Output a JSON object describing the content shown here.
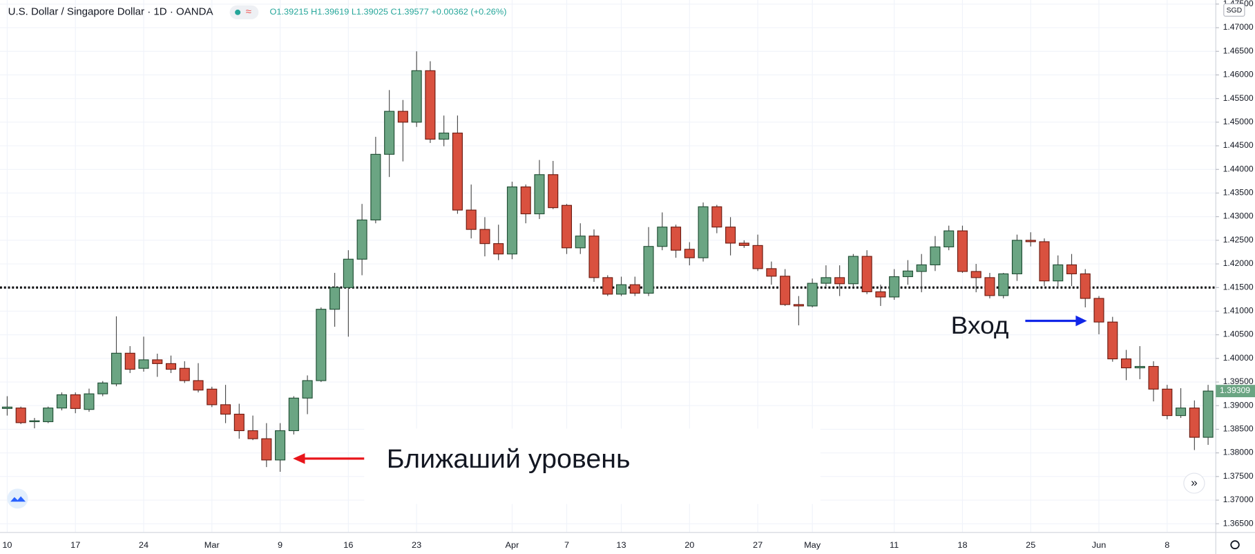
{
  "chart_data": {
    "type": "candlestick",
    "title": "U.S. Dollar / Singapore Dollar · 1D · OANDA",
    "ohlc_legend": "O1.39215 H1.39619 L1.39025 C1.39577 +0.00362 (+0.26%)",
    "currency": "SGD",
    "last_price": 1.39309,
    "level": 1.415,
    "annotations": [
      "Ближаший уровень",
      "Вход"
    ],
    "up_color": "#6ba583",
    "down_color": "#d9513f",
    "grid": true,
    "categories": [
      "10",
      null,
      null,
      null,
      null,
      "17",
      null,
      null,
      null,
      null,
      "24",
      null,
      null,
      null,
      null,
      "Mar",
      null,
      null,
      null,
      null,
      "9",
      null,
      null,
      null,
      null,
      "16",
      null,
      null,
      null,
      null,
      "23",
      null,
      null,
      null,
      null,
      null,
      null,
      "Apr",
      null,
      null,
      null,
      "7",
      null,
      null,
      null,
      "13",
      null,
      null,
      null,
      null,
      "20",
      null,
      null,
      null,
      null,
      "27",
      null,
      null,
      null,
      "May",
      null,
      null,
      null,
      null,
      null,
      "11",
      null,
      null,
      null,
      null,
      "18",
      null,
      null,
      null,
      null,
      "25",
      null,
      null,
      null,
      null,
      "Jun",
      null,
      null,
      null,
      null,
      "8",
      null,
      null,
      null
    ],
    "open": [
      1.3894,
      1.3895,
      1.3866,
      1.3866,
      1.3895,
      1.3923,
      1.3892,
      1.3925,
      1.3946,
      1.4011,
      1.3979,
      1.3997,
      1.3989,
      1.3979,
      1.3953,
      1.3935,
      1.3902,
      1.3882,
      1.3847,
      1.383,
      1.3785,
      1.3847,
      1.3916,
      1.3953,
      1.4104,
      1.415,
      1.421,
      1.4293,
      1.4432,
      1.4523,
      1.45,
      1.4609,
      1.4464,
      1.4477,
      1.4314,
      1.4273,
      1.4243,
      1.4221,
      1.4363,
      1.4306,
      1.4389,
      1.4324,
      1.4234,
      1.4259,
      1.4171,
      1.4136,
      1.4156,
      1.4138,
      1.4237,
      1.4278,
      1.4231,
      1.4213,
      1.4321,
      1.4278,
      1.4244,
      1.4239,
      1.419,
      1.4174,
      1.4114,
      1.4111,
      1.4159,
      1.4171,
      1.4158,
      1.4216,
      1.4141,
      1.413,
      1.4173,
      1.4184,
      1.4198,
      1.4236,
      1.427,
      1.4184,
      1.4171,
      1.4133,
      1.4179,
      1.425,
      1.4247,
      1.4164,
      1.4198,
      1.4179,
      1.4127,
      1.4077,
      1.3999,
      1.398,
      1.3983,
      1.3935,
      1.3879,
      1.3895,
      1.3833
    ],
    "high": [
      1.392,
      1.3898,
      1.3874,
      1.3898,
      1.3928,
      1.3928,
      1.3936,
      1.3952,
      1.4089,
      1.4026,
      1.4046,
      1.401,
      1.4006,
      1.3994,
      1.399,
      1.394,
      1.3944,
      1.3904,
      1.3879,
      1.3863,
      1.3863,
      1.392,
      1.3964,
      1.4108,
      1.4181,
      1.4229,
      1.4327,
      1.4469,
      1.4568,
      1.4547,
      1.465,
      1.4629,
      1.4514,
      1.4514,
      1.4368,
      1.4299,
      1.4283,
      1.4374,
      1.4368,
      1.442,
      1.4418,
      1.4327,
      1.4286,
      1.4273,
      1.4176,
      1.4173,
      1.4173,
      1.4278,
      1.4309,
      1.4283,
      1.4246,
      1.433,
      1.4325,
      1.4299,
      1.425,
      1.4262,
      1.4205,
      1.4189,
      1.4132,
      1.4169,
      1.4197,
      1.4197,
      1.4221,
      1.4229,
      1.4156,
      1.4189,
      1.4208,
      1.4221,
      1.4259,
      1.4281,
      1.4281,
      1.42,
      1.4181,
      1.4181,
      1.4262,
      1.4267,
      1.4254,
      1.4218,
      1.4221,
      1.4189,
      1.4132,
      1.4088,
      1.4018,
      1.4026,
      1.3994,
      1.3944,
      1.3937,
      1.3911,
      1.3944
    ],
    "low": [
      1.3879,
      1.3861,
      1.3852,
      1.3863,
      1.389,
      1.3884,
      1.3887,
      1.392,
      1.3941,
      1.3969,
      1.3972,
      1.3961,
      1.3969,
      1.3948,
      1.3928,
      1.3897,
      1.3863,
      1.383,
      1.3827,
      1.377,
      1.376,
      1.3839,
      1.3882,
      1.395,
      1.4067,
      1.4046,
      1.4176,
      1.4286,
      1.4384,
      1.4417,
      1.449,
      1.4456,
      1.4449,
      1.4306,
      1.4254,
      1.4216,
      1.4208,
      1.421,
      1.4286,
      1.4295,
      1.4316,
      1.4221,
      1.4221,
      1.4162,
      1.4132,
      1.4132,
      1.4132,
      1.4132,
      1.4229,
      1.4213,
      1.4197,
      1.4205,
      1.4265,
      1.4218,
      1.4234,
      1.4185,
      1.4156,
      1.4111,
      1.407,
      1.4108,
      1.4153,
      1.4132,
      1.4153,
      1.4136,
      1.4111,
      1.4124,
      1.4156,
      1.414,
      1.4185,
      1.4229,
      1.4181,
      1.414,
      1.4127,
      1.4127,
      1.4164,
      1.4237,
      1.4153,
      1.4148,
      1.4153,
      1.4108,
      1.4051,
      1.3993,
      1.3954,
      1.3956,
      1.3909,
      1.3871,
      1.3874,
      1.3806,
      1.3817
    ],
    "close": [
      1.3897,
      1.3864,
      1.3868,
      1.3895,
      1.3923,
      1.3894,
      1.3925,
      1.3948,
      1.4011,
      1.3977,
      1.3997,
      1.3989,
      1.3977,
      1.3953,
      1.3933,
      1.3902,
      1.3882,
      1.3847,
      1.383,
      1.3785,
      1.3847,
      1.3916,
      1.3953,
      1.4104,
      1.415,
      1.421,
      1.4293,
      1.4432,
      1.4523,
      1.45,
      1.4609,
      1.4464,
      1.4477,
      1.4314,
      1.4273,
      1.4243,
      1.4221,
      1.4363,
      1.4306,
      1.4389,
      1.4319,
      1.4234,
      1.4259,
      1.4171,
      1.4136,
      1.4156,
      1.4138,
      1.4237,
      1.4278,
      1.4229,
      1.4213,
      1.4321,
      1.4278,
      1.4244,
      1.4239,
      1.419,
      1.4174,
      1.4114,
      1.4111,
      1.4159,
      1.4171,
      1.4158,
      1.4216,
      1.4141,
      1.413,
      1.4173,
      1.4185,
      1.4198,
      1.4236,
      1.427,
      1.4184,
      1.4171,
      1.4133,
      1.4179,
      1.425,
      1.4247,
      1.4164,
      1.4198,
      1.4179,
      1.4127,
      1.4077,
      1.3999,
      1.398,
      1.3983,
      1.3935,
      1.3879,
      1.3895,
      1.3833,
      1.39309
    ],
    "ylim": [
      1.36316,
      1.47586
    ],
    "yticks": [
      {
        "value": 1.365,
        "label": "1.36500"
      },
      {
        "value": 1.37,
        "label": "1.37000"
      },
      {
        "value": 1.375,
        "label": "1.37500"
      },
      {
        "value": 1.38,
        "label": "1.38000"
      },
      {
        "value": 1.385,
        "label": "1.38500"
      },
      {
        "value": 1.39,
        "label": "1.39000"
      },
      {
        "value": 1.395,
        "label": "1.39500"
      },
      {
        "value": 1.4,
        "label": "1.40000"
      },
      {
        "value": 1.405,
        "label": "1.40500"
      },
      {
        "value": 1.41,
        "label": "1.41000"
      },
      {
        "value": 1.415,
        "label": "1.41500"
      },
      {
        "value": 1.42,
        "label": "1.42000"
      },
      {
        "value": 1.425,
        "label": "1.42500"
      },
      {
        "value": 1.43,
        "label": "1.43000"
      },
      {
        "value": 1.435,
        "label": "1.43500"
      },
      {
        "value": 1.44,
        "label": "1.44000"
      },
      {
        "value": 1.445,
        "label": "1.44500"
      },
      {
        "value": 1.45,
        "label": "1.45000"
      },
      {
        "value": 1.455,
        "label": "1.45500"
      },
      {
        "value": 1.46,
        "label": "1.46000"
      },
      {
        "value": 1.465,
        "label": "1.46500"
      },
      {
        "value": 1.47,
        "label": "1.47000"
      },
      {
        "value": 1.475,
        "label": "1.47500"
      }
    ]
  }
}
